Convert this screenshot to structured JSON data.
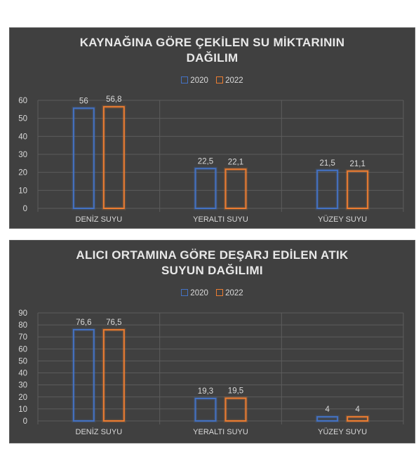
{
  "colors": {
    "s2020": "#4472c4",
    "s2022": "#ed7d31",
    "text": "#d9d9d9",
    "grid": "#5c5c5c",
    "background": "#404040"
  },
  "legend": [
    "2020",
    "2022"
  ],
  "chart_data": [
    {
      "type": "bar",
      "title_lines": [
        "KAYNAĞINA GÖRE ÇEKİLEN SU MİKTARININ",
        "DAĞILIM"
      ],
      "categories": [
        "DENİZ SUYU",
        "YERALTI SUYU",
        "YÜZEY SUYU"
      ],
      "series": [
        {
          "name": "2020",
          "values": [
            56,
            22.5,
            21.5
          ],
          "labels": [
            "56",
            "22,5",
            "21,5"
          ]
        },
        {
          "name": "2022",
          "values": [
            56.8,
            22.1,
            21.1
          ],
          "labels": [
            "56,8",
            "22,1",
            "21,1"
          ]
        }
      ],
      "ylim": [
        0,
        60
      ],
      "yticks": [
        "0",
        "10",
        "20",
        "30",
        "40",
        "50",
        "60"
      ],
      "grid": true,
      "legend_position": "top"
    },
    {
      "type": "bar",
      "title_lines": [
        "ALICI ORTAMINA GÖRE DEŞARJ EDİLEN ATIK",
        "SUYUN DAĞILIMI"
      ],
      "categories": [
        "DENİZ SUYU",
        "YERALTI SUYU",
        "YÜZEY SUYU"
      ],
      "series": [
        {
          "name": "2020",
          "values": [
            76.6,
            19.3,
            4
          ],
          "labels": [
            "76,6",
            "19,3",
            "4"
          ]
        },
        {
          "name": "2022",
          "values": [
            76.5,
            19.5,
            4
          ],
          "labels": [
            "76,5",
            "19,5",
            "4"
          ]
        }
      ],
      "ylim": [
        0,
        90
      ],
      "yticks": [
        "0",
        "10",
        "20",
        "30",
        "40",
        "50",
        "60",
        "70",
        "80",
        "90"
      ],
      "grid": true,
      "legend_position": "top"
    }
  ]
}
